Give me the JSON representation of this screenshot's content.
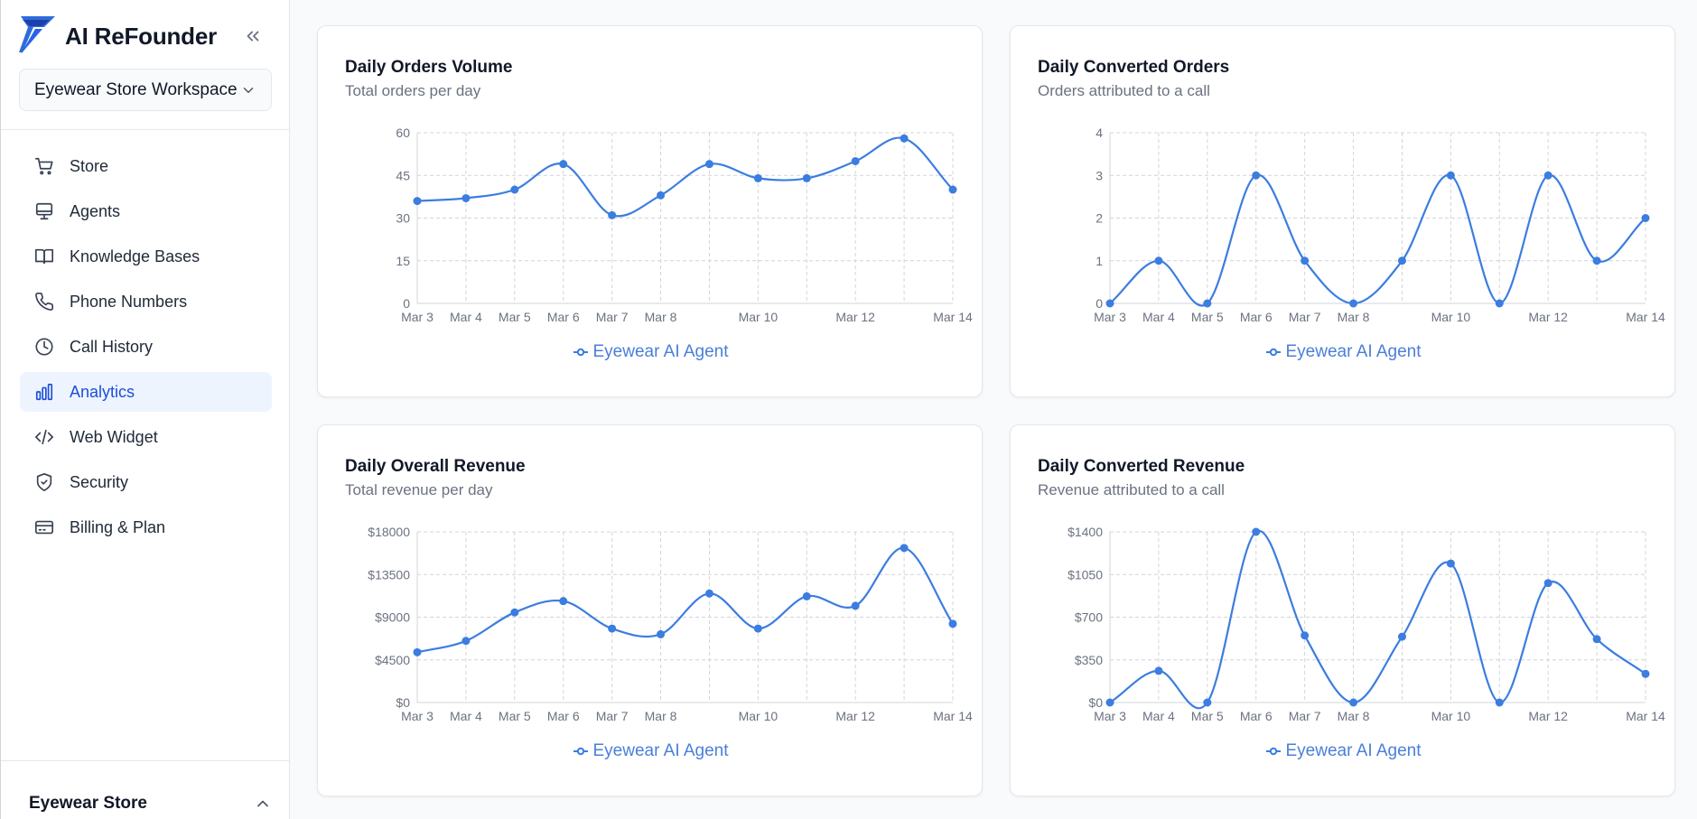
{
  "app": {
    "name": "AI ReFounder",
    "workspace": "Eyewear Store Workspace",
    "footer_store": "Eyewear Store"
  },
  "icons": {
    "logo": "logo-icon",
    "collapse": "chevrons-left-icon",
    "workspace_caret": "chevron-down-icon",
    "footer_caret": "chevron-up-icon"
  },
  "colors": {
    "accent": "#3b82f6",
    "active_bg": "#eef4fe",
    "active_text": "#1d4ed8",
    "series": "#3b7de0"
  },
  "sidebar": {
    "items": [
      {
        "label": "Store",
        "icon": "cart-icon",
        "active": false
      },
      {
        "label": "Agents",
        "icon": "monitor-icon",
        "active": false
      },
      {
        "label": "Knowledge Bases",
        "icon": "book-icon",
        "active": false
      },
      {
        "label": "Phone Numbers",
        "icon": "phone-icon",
        "active": false
      },
      {
        "label": "Call History",
        "icon": "clock-icon",
        "active": false
      },
      {
        "label": "Analytics",
        "icon": "bar-chart-icon",
        "active": true
      },
      {
        "label": "Web Widget",
        "icon": "code-icon",
        "active": false
      },
      {
        "label": "Security",
        "icon": "shield-check-icon",
        "active": false
      },
      {
        "label": "Billing & Plan",
        "icon": "credit-card-icon",
        "active": false
      }
    ]
  },
  "cards": [
    {
      "title": "Daily Orders Volume",
      "subtitle": "Total orders per day",
      "legend": "Eyewear AI Agent"
    },
    {
      "title": "Daily Converted Orders",
      "subtitle": "Orders attributed to a call",
      "legend": "Eyewear AI Agent"
    },
    {
      "title": "Daily Overall Revenue",
      "subtitle": "Total revenue per day",
      "legend": "Eyewear AI Agent"
    },
    {
      "title": "Daily Converted Revenue",
      "subtitle": "Revenue attributed to a call",
      "legend": "Eyewear AI Agent"
    }
  ],
  "chart_data": [
    {
      "type": "line",
      "title": "Daily Orders Volume",
      "subtitle": "Total orders per day",
      "x": [
        "Mar 3",
        "Mar 4",
        "Mar 5",
        "Mar 6",
        "Mar 7",
        "Mar 8",
        "Mar 9",
        "Mar 10",
        "Mar 11",
        "Mar 12",
        "Mar 13",
        "Mar 14"
      ],
      "x_tick_labels": [
        "Mar 3",
        "Mar 4",
        "Mar 5",
        "Mar 6",
        "Mar 7",
        "Mar 8",
        "",
        "Mar 10",
        "",
        "Mar 12",
        "",
        "Mar 14"
      ],
      "series": [
        {
          "name": "Eyewear AI Agent",
          "values": [
            36,
            37,
            40,
            49,
            31,
            38,
            49,
            44,
            44,
            50,
            58,
            40
          ]
        }
      ],
      "yticks": [
        0,
        15,
        30,
        45,
        60
      ],
      "ytick_labels": [
        "0",
        "15",
        "30",
        "45",
        "60"
      ],
      "ylim": [
        0,
        60
      ],
      "grid": true,
      "legend": "bottom-center"
    },
    {
      "type": "line",
      "title": "Daily Converted Orders",
      "subtitle": "Orders attributed to a call",
      "x": [
        "Mar 3",
        "Mar 4",
        "Mar 5",
        "Mar 6",
        "Mar 7",
        "Mar 8",
        "Mar 9",
        "Mar 10",
        "Mar 11",
        "Mar 12",
        "Mar 13",
        "Mar 14"
      ],
      "x_tick_labels": [
        "Mar 3",
        "Mar 4",
        "Mar 5",
        "Mar 6",
        "Mar 7",
        "Mar 8",
        "",
        "Mar 10",
        "",
        "Mar 12",
        "",
        "Mar 14"
      ],
      "series": [
        {
          "name": "Eyewear AI Agent",
          "values": [
            0,
            1,
            0,
            3,
            1,
            0,
            1,
            3,
            0,
            3,
            1,
            2
          ]
        }
      ],
      "yticks": [
        0,
        1,
        2,
        3,
        4
      ],
      "ytick_labels": [
        "0",
        "1",
        "2",
        "3",
        "4"
      ],
      "ylim": [
        0,
        4
      ],
      "grid": true,
      "legend": "bottom-center"
    },
    {
      "type": "line",
      "title": "Daily Overall Revenue",
      "subtitle": "Total revenue per day",
      "x": [
        "Mar 3",
        "Mar 4",
        "Mar 5",
        "Mar 6",
        "Mar 7",
        "Mar 8",
        "Mar 9",
        "Mar 10",
        "Mar 11",
        "Mar 12",
        "Mar 13",
        "Mar 14"
      ],
      "x_tick_labels": [
        "Mar 3",
        "Mar 4",
        "Mar 5",
        "Mar 6",
        "Mar 7",
        "Mar 8",
        "",
        "Mar 10",
        "",
        "Mar 12",
        "",
        "Mar 14"
      ],
      "series": [
        {
          "name": "Eyewear AI Agent",
          "values": [
            5300,
            6500,
            9500,
            10700,
            7800,
            7200,
            11500,
            7800,
            11200,
            10200,
            16300,
            8300
          ]
        }
      ],
      "yticks": [
        0,
        4500,
        9000,
        13500,
        18000
      ],
      "ytick_labels": [
        "$0",
        "$4500",
        "$9000",
        "$13500",
        "$18000"
      ],
      "ylim": [
        0,
        18000
      ],
      "grid": true,
      "legend": "bottom-center"
    },
    {
      "type": "line",
      "title": "Daily Converted Revenue",
      "subtitle": "Revenue attributed to a call",
      "x": [
        "Mar 3",
        "Mar 4",
        "Mar 5",
        "Mar 6",
        "Mar 7",
        "Mar 8",
        "Mar 9",
        "Mar 10",
        "Mar 11",
        "Mar 12",
        "Mar 13",
        "Mar 14"
      ],
      "x_tick_labels": [
        "Mar 3",
        "Mar 4",
        "Mar 5",
        "Mar 6",
        "Mar 7",
        "Mar 8",
        "",
        "Mar 10",
        "",
        "Mar 12",
        "",
        "Mar 14"
      ],
      "series": [
        {
          "name": "Eyewear AI Agent",
          "values": [
            0,
            260,
            0,
            1400,
            550,
            0,
            540,
            1140,
            0,
            980,
            520,
            235
          ]
        }
      ],
      "yticks": [
        0,
        350,
        700,
        1050,
        1400
      ],
      "ytick_labels": [
        "$0",
        "$350",
        "$700",
        "$1050",
        "$1400"
      ],
      "ylim": [
        0,
        1400
      ],
      "grid": true,
      "legend": "bottom-center"
    }
  ]
}
